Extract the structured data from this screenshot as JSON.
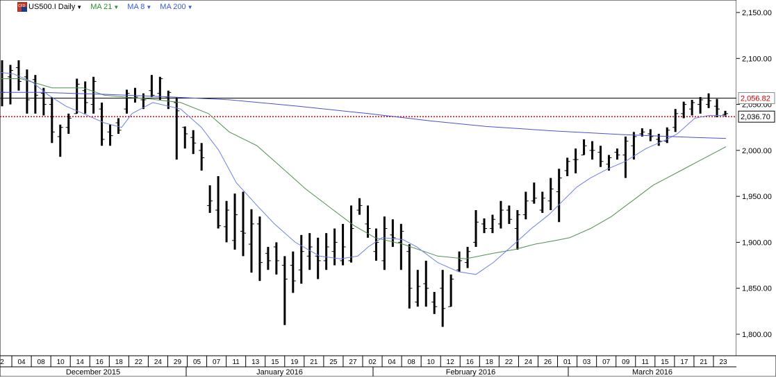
{
  "toolbar": {
    "symbol_label": "US500.I Daily",
    "indicators": [
      {
        "label": "MA 21",
        "color": "#2e8b2e"
      },
      {
        "label": "MA 8",
        "color": "#3a5bd9"
      },
      {
        "label": "MA 200",
        "color": "#3a5bd9"
      }
    ]
  },
  "colors": {
    "bar": "#000000",
    "ma21": "#4f8f4f",
    "ma8": "#6f7fe8",
    "ma200": "#4a4fd0",
    "current_line": "#cc0000",
    "hline": "#000000",
    "label_red": "#cc0000"
  },
  "chart_data": {
    "type": "ohlc",
    "title": "US500.I Daily",
    "ylim": [
      1775,
      2160
    ],
    "yticks": [
      "2,150.00",
      "2,100.00",
      "2,050.00",
      "2,000.00",
      "1,950.00",
      "1,900.00",
      "1,850.00",
      "1,800.00"
    ],
    "price_labels": {
      "high_line": "2,056.82",
      "current": "2,036.70"
    },
    "high_line_value": 2056.82,
    "current_value": 2036.7,
    "x_day_labels": [
      "2",
      "04",
      "08",
      "10",
      "14",
      "16",
      "18",
      "22",
      "24",
      "29",
      "05",
      "07",
      "11",
      "13",
      "15",
      "19",
      "21",
      "25",
      "27",
      "02",
      "04",
      "08",
      "10",
      "12",
      "16",
      "18",
      "22",
      "24",
      "26",
      "01",
      "03",
      "07",
      "09",
      "11",
      "15",
      "17",
      "21",
      "23"
    ],
    "month_labels": [
      "December 2015",
      "January 2016",
      "February 2016",
      "March 2016"
    ],
    "series": [
      {
        "name": "US500.I",
        "ohlc": [
          [
            2085,
            2098,
            2048,
            2063
          ],
          [
            2080,
            2093,
            2050,
            2087
          ],
          [
            2090,
            2098,
            2065,
            2075
          ],
          [
            2080,
            2088,
            2040,
            2055
          ],
          [
            2077,
            2082,
            2040,
            2060
          ],
          [
            2062,
            2068,
            2038,
            2050
          ],
          [
            2050,
            2058,
            2008,
            2020
          ],
          [
            2015,
            2028,
            1993,
            2025
          ],
          [
            2025,
            2040,
            2018,
            2035
          ],
          [
            2040,
            2078,
            2040,
            2072
          ],
          [
            2065,
            2075,
            2040,
            2052
          ],
          [
            2050,
            2080,
            2040,
            2075
          ],
          [
            2045,
            2052,
            2005,
            2012
          ],
          [
            2020,
            2028,
            2005,
            2016
          ],
          [
            2030,
            2035,
            2018,
            2022
          ],
          [
            2045,
            2066,
            2040,
            2062
          ],
          [
            2057,
            2068,
            2052,
            2058
          ],
          [
            2055,
            2062,
            2045,
            2055
          ],
          [
            2065,
            2082,
            2058,
            2060
          ],
          [
            2062,
            2080,
            2055,
            2078
          ],
          [
            2058,
            2065,
            2045,
            2063
          ],
          [
            2052,
            2058,
            1990,
            2043
          ],
          [
            2025,
            2026,
            2002,
            2018
          ],
          [
            2014,
            2022,
            1996,
            2008
          ],
          [
            2000,
            2008,
            1978,
            1992
          ],
          [
            1940,
            1962,
            1932,
            1945
          ],
          [
            1935,
            1972,
            1915,
            1918
          ],
          [
            1917,
            1945,
            1900,
            1935
          ],
          [
            1902,
            1953,
            1892,
            1930
          ],
          [
            1912,
            1955,
            1885,
            1910
          ],
          [
            1898,
            1936,
            1867,
            1920
          ],
          [
            1920,
            1928,
            1858,
            1878
          ],
          [
            1888,
            1895,
            1870,
            1880
          ],
          [
            1895,
            1900,
            1865,
            1880
          ],
          [
            1875,
            1885,
            1810,
            1860
          ],
          [
            1875,
            1890,
            1845,
            1858
          ],
          [
            1870,
            1908,
            1855,
            1890
          ],
          [
            1885,
            1910,
            1870,
            1895
          ],
          [
            1885,
            1905,
            1860,
            1880
          ],
          [
            1880,
            1910,
            1870,
            1895
          ],
          [
            1890,
            1915,
            1875,
            1900
          ],
          [
            1880,
            1920,
            1875,
            1895
          ],
          [
            1880,
            1940,
            1878,
            1915
          ],
          [
            1935,
            1948,
            1930,
            1940
          ],
          [
            1920,
            1940,
            1905,
            1915
          ],
          [
            1890,
            1915,
            1880,
            1900
          ],
          [
            1880,
            1928,
            1870,
            1915
          ],
          [
            1908,
            1925,
            1895,
            1905
          ],
          [
            1900,
            1920,
            1870,
            1912
          ],
          [
            1890,
            1898,
            1828,
            1850
          ],
          [
            1835,
            1870,
            1830,
            1852
          ],
          [
            1855,
            1880,
            1830,
            1850
          ],
          [
            1835,
            1846,
            1822,
            1830
          ],
          [
            1850,
            1870,
            1808,
            1828
          ],
          [
            1830,
            1865,
            1830,
            1860
          ],
          [
            1870,
            1890,
            1868,
            1880
          ],
          [
            1878,
            1895,
            1872,
            1890
          ],
          [
            1900,
            1935,
            1895,
            1922
          ],
          [
            1920,
            1926,
            1910,
            1915
          ],
          [
            1915,
            1930,
            1910,
            1925
          ],
          [
            1920,
            1945,
            1915,
            1935
          ],
          [
            1935,
            1940,
            1920,
            1925
          ],
          [
            1915,
            1935,
            1892,
            1930
          ],
          [
            1930,
            1955,
            1925,
            1945
          ],
          [
            1945,
            1965,
            1942,
            1948
          ],
          [
            1935,
            1955,
            1932,
            1948
          ],
          [
            1945,
            1970,
            1935,
            1958
          ],
          [
            1955,
            1980,
            1922,
            1970
          ],
          [
            1978,
            1992,
            1972,
            1988
          ],
          [
            1990,
            2002,
            1975,
            1990
          ],
          [
            1995,
            2012,
            1995,
            2005
          ],
          [
            2000,
            2010,
            1990,
            2000
          ],
          [
            1998,
            2005,
            1982,
            1988
          ],
          [
            1985,
            1995,
            1978,
            1992
          ],
          [
            1998,
            2002,
            1990,
            1995
          ],
          [
            1995,
            2015,
            1970,
            2010
          ],
          [
            2005,
            2020,
            1990,
            2015
          ],
          [
            2018,
            2024,
            2015,
            2020
          ],
          [
            2018,
            2023,
            2010,
            2015
          ],
          [
            2012,
            2018,
            2005,
            2010
          ],
          [
            2010,
            2025,
            2008,
            2022
          ],
          [
            2025,
            2045,
            2020,
            2040
          ],
          [
            2040,
            2053,
            2035,
            2050
          ],
          [
            2045,
            2055,
            2038,
            2052
          ],
          [
            2050,
            2058,
            2040,
            2055
          ],
          [
            2050,
            2062,
            2046,
            2054
          ],
          [
            2048,
            2056,
            2036,
            2045
          ],
          [
            2039,
            2043,
            2037,
            2040
          ]
        ]
      },
      {
        "name": "MA 21",
        "points": [
          [
            0,
            2078
          ],
          [
            30,
            2078
          ],
          [
            75,
            2068
          ],
          [
            120,
            2068
          ],
          [
            150,
            2060
          ],
          [
            180,
            2058
          ],
          [
            215,
            2056
          ],
          [
            260,
            2052
          ],
          [
            300,
            2040
          ],
          [
            330,
            2020
          ],
          [
            370,
            2005
          ],
          [
            400,
            1985
          ],
          [
            440,
            1958
          ],
          [
            480,
            1935
          ],
          [
            510,
            1918
          ],
          [
            540,
            1905
          ],
          [
            580,
            1898
          ],
          [
            630,
            1885
          ],
          [
            670,
            1882
          ],
          [
            710,
            1888
          ],
          [
            740,
            1892
          ],
          [
            770,
            1898
          ],
          [
            800,
            1902
          ],
          [
            820,
            1905
          ],
          [
            850,
            1915
          ],
          [
            880,
            1928
          ],
          [
            910,
            1945
          ],
          [
            940,
            1962
          ],
          [
            980,
            1978
          ],
          [
            1010,
            1990
          ],
          [
            1045,
            2004
          ]
        ]
      },
      {
        "name": "MA 8",
        "points": [
          [
            0,
            2085
          ],
          [
            20,
            2083
          ],
          [
            45,
            2075
          ],
          [
            70,
            2060
          ],
          [
            95,
            2048
          ],
          [
            120,
            2040
          ],
          [
            150,
            2030
          ],
          [
            175,
            2025
          ],
          [
            190,
            2040
          ],
          [
            220,
            2052
          ],
          [
            260,
            2045
          ],
          [
            290,
            2025
          ],
          [
            315,
            2000
          ],
          [
            340,
            1965
          ],
          [
            370,
            1940
          ],
          [
            395,
            1920
          ],
          [
            425,
            1900
          ],
          [
            460,
            1885
          ],
          [
            490,
            1882
          ],
          [
            515,
            1885
          ],
          [
            530,
            1895
          ],
          [
            550,
            1905
          ],
          [
            580,
            1903
          ],
          [
            600,
            1895
          ],
          [
            630,
            1878
          ],
          [
            660,
            1868
          ],
          [
            685,
            1865
          ],
          [
            710,
            1878
          ],
          [
            740,
            1898
          ],
          [
            765,
            1915
          ],
          [
            790,
            1930
          ],
          [
            810,
            1945
          ],
          [
            830,
            1960
          ],
          [
            850,
            1970
          ],
          [
            875,
            1980
          ],
          [
            900,
            1988
          ],
          [
            930,
            2002
          ],
          [
            960,
            2012
          ],
          [
            975,
            2018
          ],
          [
            1000,
            2035
          ],
          [
            1020,
            2038
          ],
          [
            1045,
            2038
          ]
        ]
      },
      {
        "name": "MA 200",
        "points": [
          [
            0,
            2063
          ],
          [
            60,
            2063
          ],
          [
            150,
            2061
          ],
          [
            250,
            2058
          ],
          [
            330,
            2055
          ],
          [
            430,
            2048
          ],
          [
            530,
            2040
          ],
          [
            620,
            2032
          ],
          [
            700,
            2026
          ],
          [
            800,
            2021
          ],
          [
            900,
            2017
          ],
          [
            1000,
            2014
          ],
          [
            1045,
            2013
          ]
        ]
      }
    ]
  }
}
